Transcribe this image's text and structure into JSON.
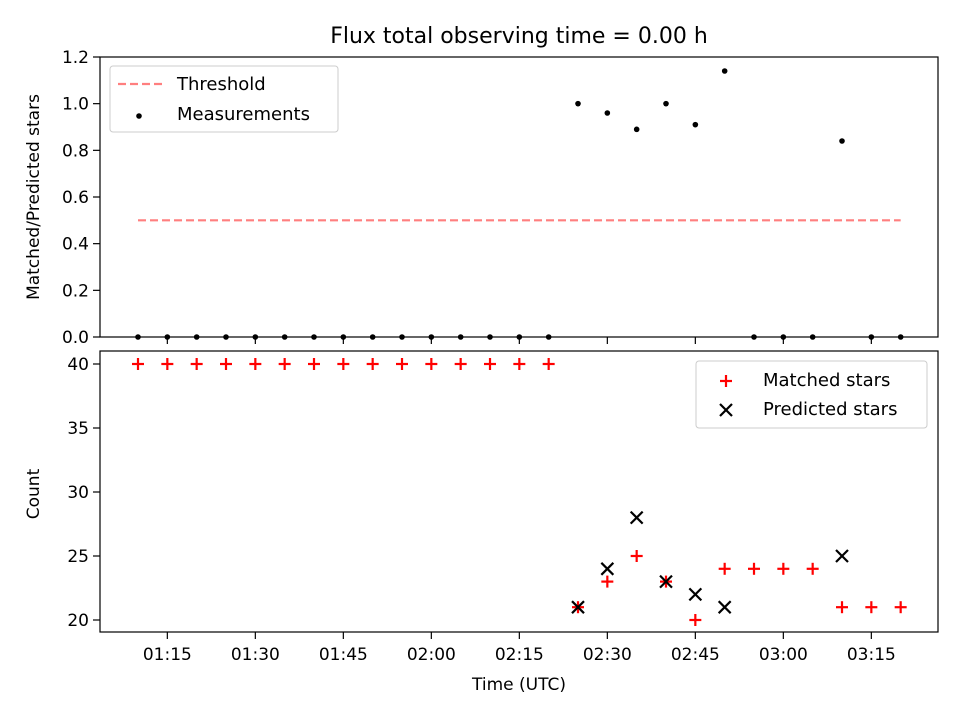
{
  "chart_data": [
    {
      "type": "scatter",
      "title": "Flux total observing time = 0.00 h",
      "xlabel": "",
      "ylabel": "Matched/Predicted stars",
      "ylim": [
        0,
        1.2
      ],
      "yticks": [
        "0.0",
        "0.2",
        "0.4",
        "0.6",
        "0.8",
        "1.0",
        "1.2"
      ],
      "legend_position": "top-left",
      "threshold": {
        "name": "Threshold",
        "value": 0.5,
        "x_range": [
          "01:10",
          "03:20"
        ],
        "color": "#ff7f7f"
      },
      "series": [
        {
          "name": "Measurements",
          "color": "#000000",
          "x": [
            "01:10",
            "01:15",
            "01:20",
            "01:25",
            "01:30",
            "01:35",
            "01:40",
            "01:45",
            "01:50",
            "01:55",
            "02:00",
            "02:05",
            "02:10",
            "02:15",
            "02:20",
            "02:25",
            "02:30",
            "02:35",
            "02:40",
            "02:45",
            "02:50",
            "02:55",
            "03:00",
            "03:05",
            "03:10",
            "03:15",
            "03:20"
          ],
          "y": [
            0,
            0,
            0,
            0,
            0,
            0,
            0,
            0,
            0,
            0,
            0,
            0,
            0,
            0,
            0,
            1.0,
            0.96,
            0.89,
            1.0,
            0.91,
            1.14,
            0,
            0,
            0,
            0.84,
            0,
            0
          ]
        }
      ]
    },
    {
      "type": "scatter",
      "xlabel": "Time (UTC)",
      "ylabel": "Count",
      "ylim": [
        19,
        41
      ],
      "yticks": [
        "20",
        "25",
        "30",
        "35",
        "40"
      ],
      "xticks": [
        "01:15",
        "01:30",
        "01:45",
        "02:00",
        "02:15",
        "02:30",
        "02:45",
        "03:00",
        "03:15"
      ],
      "legend_position": "top-right",
      "series": [
        {
          "name": "Matched stars",
          "color": "#ff0000",
          "marker": "plus",
          "x": [
            "01:10",
            "01:15",
            "01:20",
            "01:25",
            "01:30",
            "01:35",
            "01:40",
            "01:45",
            "01:50",
            "01:55",
            "02:00",
            "02:05",
            "02:10",
            "02:15",
            "02:20",
            "02:25",
            "02:30",
            "02:35",
            "02:40",
            "02:45",
            "02:50",
            "02:55",
            "03:00",
            "03:05",
            "03:10",
            "03:15",
            "03:20"
          ],
          "y": [
            40,
            40,
            40,
            40,
            40,
            40,
            40,
            40,
            40,
            40,
            40,
            40,
            40,
            40,
            40,
            21,
            23,
            25,
            23,
            20,
            24,
            24,
            24,
            24,
            21,
            21,
            21
          ]
        },
        {
          "name": "Predicted stars",
          "color": "#000000",
          "marker": "x",
          "x": [
            "02:25",
            "02:30",
            "02:35",
            "02:40",
            "02:45",
            "02:50",
            "03:10"
          ],
          "y": [
            21,
            24,
            28,
            23,
            22,
            21,
            25
          ]
        }
      ]
    }
  ]
}
